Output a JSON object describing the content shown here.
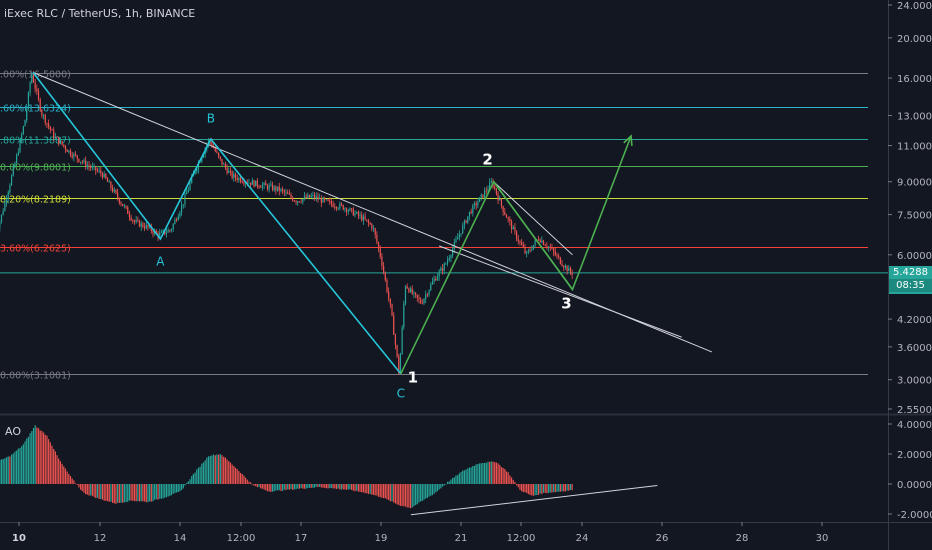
{
  "header": {
    "title": "iExec RLC / TetherUS, 1h, BINANCE"
  },
  "indicator": {
    "label": "AO"
  },
  "last_price": {
    "value": "5.4288",
    "countdown": "08:35"
  },
  "colors": {
    "background": "#131722",
    "up": "#26a69a",
    "down": "#ef5350",
    "fib_1": "#787b86",
    "fib_0786": "#2bb3c9",
    "fib_0618": "#26a69a",
    "fib_05": "#4caf50",
    "fib_0382": "#cddc39",
    "fib_0236": "#f44336",
    "fib_0": "#787b86",
    "waves_abc": "#26c6da",
    "waves_123": "#4caf50",
    "trendlines": "#d1d4dc"
  },
  "chart_data": [
    {
      "type": "candlestick",
      "title": "iExec RLC / TetherUS, 1h, BINANCE",
      "x_ticks": [
        "10",
        "12",
        "14",
        "12:00",
        "17",
        "19",
        "21",
        "12:00",
        "24",
        "26",
        "28",
        "30"
      ],
      "y_ticks": [
        "24.0000",
        "20.0000",
        "16.0000",
        "13.0000",
        "11.0000",
        "9.0000",
        "7.5000",
        "6.0000",
        "4.2000",
        "3.6000",
        "3.0000",
        "2.5500"
      ],
      "y_scale": "log",
      "ylim": [
        2.55,
        24.0
      ],
      "fib_levels": [
        {
          "label": ".00%(16.5000)",
          "value": 16.5
        },
        {
          "label": ".60%(13.6324)",
          "value": 13.6324
        },
        {
          "label": ".80%(11.3887)",
          "value": 11.3887
        },
        {
          "label": "0.00%(9.8001)",
          "value": 9.8001
        },
        {
          "label": "8.20%(8.2189)",
          "value": 8.2189
        },
        {
          "label": "3.60%(6.2625)",
          "value": 6.2625
        },
        {
          "label": "0.00%(3.1001)",
          "value": 3.1001
        }
      ],
      "price_path": [
        {
          "day": 9.4,
          "price": 6.5
        },
        {
          "day": 9.6,
          "price": 7.4
        },
        {
          "day": 9.8,
          "price": 8.8
        },
        {
          "day": 10.0,
          "price": 10.5
        },
        {
          "day": 10.2,
          "price": 12.8
        },
        {
          "day": 10.35,
          "price": 16.5
        },
        {
          "day": 10.6,
          "price": 13.2
        },
        {
          "day": 10.9,
          "price": 11.6
        },
        {
          "day": 11.3,
          "price": 10.6
        },
        {
          "day": 11.7,
          "price": 9.9
        },
        {
          "day": 12.1,
          "price": 9.4
        },
        {
          "day": 12.5,
          "price": 8.2
        },
        {
          "day": 12.9,
          "price": 7.2
        },
        {
          "day": 13.2,
          "price": 7.0
        },
        {
          "day": 13.5,
          "price": 6.7
        },
        {
          "day": 13.8,
          "price": 6.9
        },
        {
          "day": 14.1,
          "price": 8.0
        },
        {
          "day": 14.4,
          "price": 9.6
        },
        {
          "day": 14.75,
          "price": 11.4
        },
        {
          "day": 15.0,
          "price": 10.2
        },
        {
          "day": 15.3,
          "price": 9.3
        },
        {
          "day": 15.7,
          "price": 9.0
        },
        {
          "day": 16.1,
          "price": 8.8
        },
        {
          "day": 16.5,
          "price": 8.6
        },
        {
          "day": 16.9,
          "price": 8.1
        },
        {
          "day": 17.3,
          "price": 8.3
        },
        {
          "day": 17.7,
          "price": 8.0
        },
        {
          "day": 18.1,
          "price": 7.8
        },
        {
          "day": 18.5,
          "price": 7.4
        },
        {
          "day": 18.8,
          "price": 7.0
        },
        {
          "day": 19.0,
          "price": 5.9
        },
        {
          "day": 19.25,
          "price": 4.4
        },
        {
          "day": 19.45,
          "price": 3.1
        },
        {
          "day": 19.6,
          "price": 5.1
        },
        {
          "day": 19.8,
          "price": 4.8
        },
        {
          "day": 20.0,
          "price": 4.6
        },
        {
          "day": 20.3,
          "price": 5.2
        },
        {
          "day": 20.6,
          "price": 5.7
        },
        {
          "day": 20.9,
          "price": 6.6
        },
        {
          "day": 21.2,
          "price": 7.6
        },
        {
          "day": 21.5,
          "price": 8.3
        },
        {
          "day": 21.75,
          "price": 9.0
        },
        {
          "day": 22.0,
          "price": 7.8
        },
        {
          "day": 22.3,
          "price": 6.8
        },
        {
          "day": 22.6,
          "price": 6.0
        },
        {
          "day": 22.9,
          "price": 6.6
        },
        {
          "day": 23.2,
          "price": 6.2
        },
        {
          "day": 23.5,
          "price": 5.7
        },
        {
          "day": 23.7,
          "price": 5.43
        }
      ],
      "annotations": [
        {
          "text": "A",
          "day": 13.5,
          "price": 5.65
        },
        {
          "text": "B",
          "day": 14.75,
          "price": 12.5
        },
        {
          "text": "C",
          "day": 19.45,
          "price": 2.72
        },
        {
          "text": "1",
          "day": 19.75,
          "price": 2.95
        },
        {
          "text": "2",
          "day": 21.6,
          "price": 9.9
        },
        {
          "text": "3",
          "day": 23.55,
          "price": 4.45
        }
      ],
      "wave_abc": [
        {
          "day": 10.35,
          "price": 16.5
        },
        {
          "day": 13.5,
          "price": 6.55
        },
        {
          "day": 14.75,
          "price": 11.4
        },
        {
          "day": 19.45,
          "price": 3.1
        }
      ],
      "wave_123": [
        {
          "day": 19.45,
          "price": 3.1
        },
        {
          "day": 21.75,
          "price": 9.0
        },
        {
          "day": 23.7,
          "price": 4.95
        },
        {
          "day": 25.15,
          "price": 11.6
        }
      ],
      "wave_123_inner": [
        {
          "day": 21.75,
          "price": 9.0
        },
        {
          "day": 23.7,
          "price": 4.95
        }
      ],
      "trendlines": [
        {
          "from": {
            "day": 10.35,
            "price": 16.5
          },
          "to": {
            "day": 27.15,
            "price": 3.5
          }
        },
        {
          "from": {
            "day": 20.4,
            "price": 6.3
          },
          "to": {
            "day": 26.4,
            "price": 3.8
          }
        },
        {
          "from": {
            "day": 21.75,
            "price": 9.0
          },
          "to": {
            "day": 23.7,
            "price": 6.0
          }
        }
      ]
    },
    {
      "type": "bar",
      "title": "AO",
      "y_ticks": [
        "4.0000",
        "2.0000",
        "0.0000",
        "-2.0000"
      ],
      "ylim": [
        -2.6,
        4.6
      ],
      "ao_path": [
        {
          "day": 9.4,
          "value": 1.4
        },
        {
          "day": 9.8,
          "value": 1.9
        },
        {
          "day": 10.1,
          "value": 2.6
        },
        {
          "day": 10.4,
          "value": 3.9
        },
        {
          "day": 10.7,
          "value": 3.2
        },
        {
          "day": 11.0,
          "value": 1.6
        },
        {
          "day": 11.3,
          "value": 0.4
        },
        {
          "day": 11.6,
          "value": -0.6
        },
        {
          "day": 12.0,
          "value": -1.0
        },
        {
          "day": 12.4,
          "value": -1.3
        },
        {
          "day": 12.8,
          "value": -1.1
        },
        {
          "day": 13.2,
          "value": -1.2
        },
        {
          "day": 13.6,
          "value": -0.9
        },
        {
          "day": 14.0,
          "value": -0.5
        },
        {
          "day": 14.3,
          "value": 0.6
        },
        {
          "day": 14.7,
          "value": 1.9
        },
        {
          "day": 15.0,
          "value": 2.0
        },
        {
          "day": 15.4,
          "value": 1.0
        },
        {
          "day": 15.8,
          "value": -0.1
        },
        {
          "day": 16.2,
          "value": -0.5
        },
        {
          "day": 16.6,
          "value": -0.4
        },
        {
          "day": 17.0,
          "value": -0.3
        },
        {
          "day": 17.4,
          "value": -0.2
        },
        {
          "day": 17.8,
          "value": -0.3
        },
        {
          "day": 18.2,
          "value": -0.4
        },
        {
          "day": 18.6,
          "value": -0.6
        },
        {
          "day": 19.0,
          "value": -0.9
        },
        {
          "day": 19.4,
          "value": -1.4
        },
        {
          "day": 19.7,
          "value": -1.6
        },
        {
          "day": 20.0,
          "value": -1.1
        },
        {
          "day": 20.3,
          "value": -0.6
        },
        {
          "day": 20.6,
          "value": 0.1
        },
        {
          "day": 21.0,
          "value": 0.9
        },
        {
          "day": 21.4,
          "value": 1.4
        },
        {
          "day": 21.8,
          "value": 1.5
        },
        {
          "day": 22.1,
          "value": 0.8
        },
        {
          "day": 22.4,
          "value": -0.4
        },
        {
          "day": 22.7,
          "value": -0.8
        },
        {
          "day": 23.0,
          "value": -0.6
        },
        {
          "day": 23.4,
          "value": -0.5
        },
        {
          "day": 23.7,
          "value": -0.4
        }
      ],
      "trendline": {
        "from": {
          "day": 19.7,
          "value": -2.05
        },
        "to": {
          "day": 25.8,
          "value": -0.1
        }
      }
    }
  ]
}
